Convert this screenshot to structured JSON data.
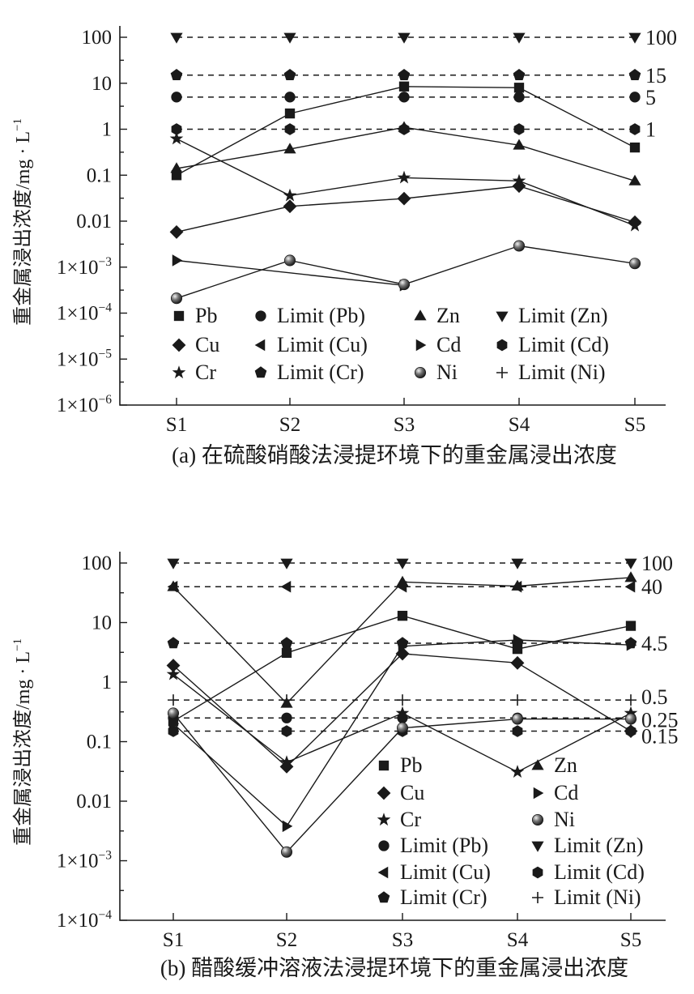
{
  "chart_data": [
    {
      "type": "line",
      "title": "(a) 在硫酸硝酸法浸提环境下的重金属浸出浓度",
      "xlabel": "",
      "ylabel": "重金属浸出浓度/mg · L⁻¹",
      "yscale": "log",
      "ylim": [
        1e-06,
        100
      ],
      "y_tick_labels": [
        "100",
        "10",
        "1",
        "0.1",
        "0.01",
        "1×10⁻³",
        "1×10⁻⁴",
        "1×10⁻⁵",
        "1×10⁻⁶"
      ],
      "y_tick_values": [
        100,
        10,
        1,
        0.1,
        0.01,
        0.001,
        0.0001,
        1e-05,
        1e-06
      ],
      "categories": [
        "S1",
        "S2",
        "S3",
        "S4",
        "S5"
      ],
      "series": [
        {
          "name": "Pb",
          "marker": "square",
          "values": [
            0.1,
            2.2,
            8.5,
            8.0,
            0.4
          ]
        },
        {
          "name": "Zn",
          "marker": "triangle-up",
          "values": [
            0.14,
            0.37,
            1.1,
            0.45,
            0.075
          ]
        },
        {
          "name": "Cu",
          "marker": "diamond",
          "values": [
            0.0058,
            0.021,
            0.031,
            0.058,
            0.0095
          ]
        },
        {
          "name": "Cd",
          "marker": "triangle-right",
          "values": [
            0.0014,
            null,
            0.0004,
            null,
            null
          ]
        },
        {
          "name": "Cr",
          "marker": "star",
          "values": [
            0.62,
            0.036,
            0.088,
            0.075,
            0.008
          ]
        },
        {
          "name": "Ni",
          "marker": "sphere",
          "values": [
            0.00021,
            0.0014,
            0.00042,
            0.0029,
            0.0012
          ]
        }
      ],
      "limits": [
        {
          "name": "Limit (Zn)",
          "marker": "triangle-down",
          "value": 100,
          "label": "100"
        },
        {
          "name": "Limit (Cr)",
          "marker": "pentagon",
          "value": 15,
          "label": "15"
        },
        {
          "name": "Limit (Pb)",
          "marker": "circle",
          "value": 5,
          "label": "5"
        },
        {
          "name": "Limit (Cd)",
          "marker": "hexagon",
          "value": 1,
          "label": "1"
        }
      ],
      "legend": [
        "Pb",
        "Limit (Pb)",
        "Zn",
        "Limit (Zn)",
        "Cu",
        "Limit (Cu)",
        "Cd",
        "Limit (Cd)",
        "Cr",
        "Limit (Cr)",
        "Ni",
        "Limit (Ni)"
      ],
      "legend_placement": "bottom"
    },
    {
      "type": "line",
      "title": "(b) 醋酸缓冲溶液法浸提环境下的重金属浸出浓度",
      "xlabel": "",
      "ylabel": "重金属浸出浓度/mg · L⁻¹",
      "yscale": "log",
      "ylim": [
        0.0001,
        100
      ],
      "y_tick_labels": [
        "100",
        "10",
        "1",
        "0.1",
        "0.01",
        "1×10⁻³",
        "1×10⁻⁴"
      ],
      "y_tick_values": [
        100,
        10,
        1,
        0.1,
        0.01,
        0.001,
        0.0001
      ],
      "categories": [
        "S1",
        "S2",
        "S3",
        "S4",
        "S5"
      ],
      "series": [
        {
          "name": "Pb",
          "marker": "square",
          "values": [
            0.22,
            3.1,
            13,
            3.6,
            8.8
          ]
        },
        {
          "name": "Zn",
          "marker": "triangle-up",
          "values": [
            40,
            0.44,
            48,
            41,
            57
          ]
        },
        {
          "name": "Cu",
          "marker": "diamond",
          "values": [
            1.9,
            0.038,
            3.0,
            2.1,
            0.15
          ]
        },
        {
          "name": "Cd",
          "marker": "triangle-right",
          "values": [
            0.2,
            0.0038,
            4.0,
            5.1,
            4.2
          ]
        },
        {
          "name": "Cr",
          "marker": "star",
          "values": [
            1.35,
            0.045,
            0.3,
            0.031,
            0.3
          ]
        },
        {
          "name": "Ni",
          "marker": "sphere",
          "values": [
            0.3,
            0.0014,
            0.17,
            0.24,
            0.24
          ]
        }
      ],
      "limits": [
        {
          "name": "Limit (Zn)",
          "marker": "triangle-down",
          "value": 100,
          "label": "100"
        },
        {
          "name": "Limit (Cu)",
          "marker": "triangle-left",
          "value": 40,
          "label": "40"
        },
        {
          "name": "Limit (Cr)",
          "marker": "pentagon",
          "value": 4.5,
          "label": "4.5"
        },
        {
          "name": "Limit (Ni)",
          "marker": "plus",
          "value": 0.5,
          "label": "0.5"
        },
        {
          "name": "Limit (Pb)",
          "marker": "circle",
          "value": 0.25,
          "label": "0.25"
        },
        {
          "name": "Limit (Cd)",
          "marker": "hexagon",
          "value": 0.15,
          "label": "0.15"
        }
      ],
      "legend": [
        "Pb",
        "Zn",
        "Cu",
        "Cd",
        "Cr",
        "Ni",
        "Limit (Pb)",
        "Limit (Zn)",
        "Limit (Cu)",
        "Limit (Cd)",
        "Limit (Cr)",
        "Limit (Ni)"
      ],
      "legend_placement": "bottom-right"
    }
  ]
}
